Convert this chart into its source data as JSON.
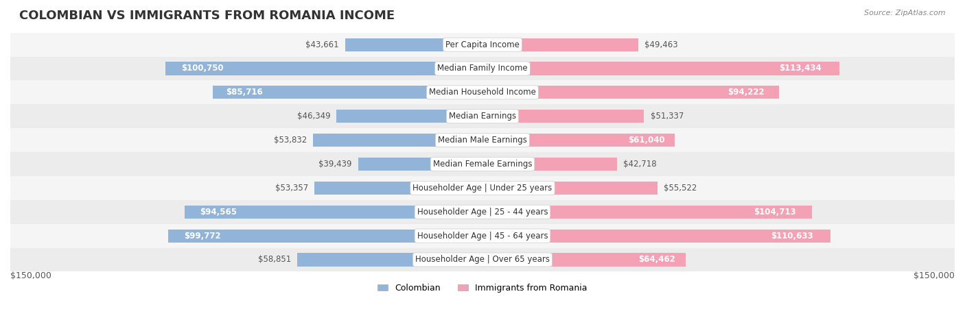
{
  "title": "COLOMBIAN VS IMMIGRANTS FROM ROMANIA INCOME",
  "source": "Source: ZipAtlas.com",
  "categories": [
    "Per Capita Income",
    "Median Family Income",
    "Median Household Income",
    "Median Earnings",
    "Median Male Earnings",
    "Median Female Earnings",
    "Householder Age | Under 25 years",
    "Householder Age | 25 - 44 years",
    "Householder Age | 45 - 64 years",
    "Householder Age | Over 65 years"
  ],
  "colombian_values": [
    43661,
    100750,
    85716,
    46349,
    53832,
    39439,
    53357,
    94565,
    99772,
    58851
  ],
  "romania_values": [
    49463,
    113434,
    94222,
    51337,
    61040,
    42718,
    55522,
    104713,
    110633,
    64462
  ],
  "colombian_labels": [
    "$43,661",
    "$100,750",
    "$85,716",
    "$46,349",
    "$53,832",
    "$39,439",
    "$53,357",
    "$94,565",
    "$99,772",
    "$58,851"
  ],
  "romania_labels": [
    "$49,463",
    "$113,434",
    "$94,222",
    "$51,337",
    "$61,040",
    "$42,718",
    "$55,522",
    "$104,713",
    "$110,633",
    "$64,462"
  ],
  "colombian_color": "#92b4d9",
  "romania_color": "#f4a0b5",
  "colombian_color_dark": "#6a9dc8",
  "romania_color_dark": "#e87fa0",
  "bar_bg_color": "#f0f0f0",
  "row_bg_colors": [
    "#f5f5f5",
    "#ececec"
  ],
  "max_value": 150000,
  "legend_colombian": "Colombian",
  "legend_romania": "Immigrants from Romania",
  "title_fontsize": 13,
  "label_fontsize": 8.5,
  "category_fontsize": 8.5,
  "axis_label": "$150,000"
}
